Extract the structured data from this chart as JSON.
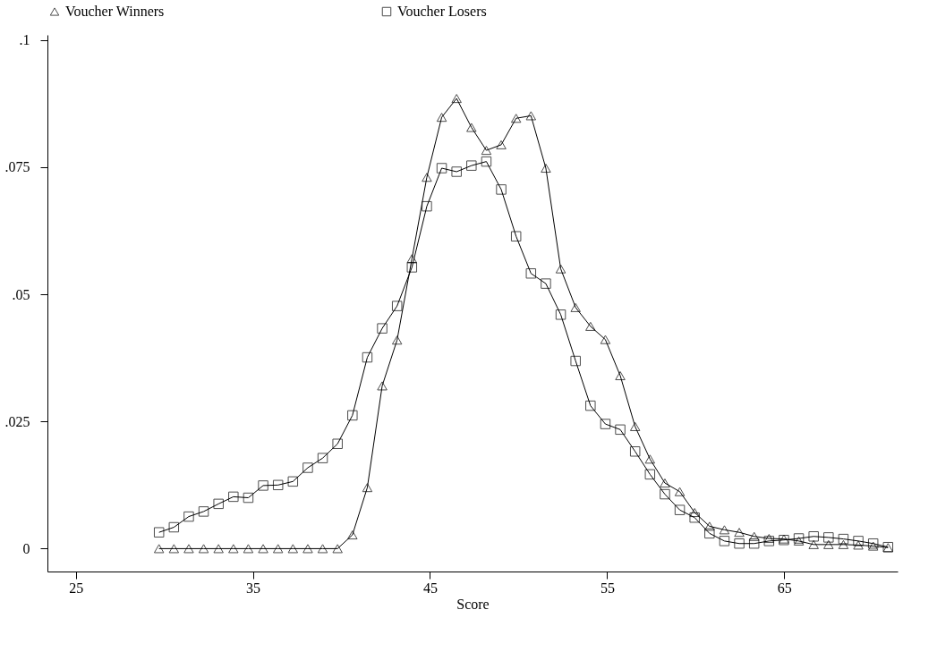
{
  "chart_data": {
    "type": "line",
    "xlabel": "Score",
    "legend": "top",
    "grid": false,
    "x": [
      29.7,
      30.54,
      31.38,
      32.22,
      33.06,
      33.9,
      34.74,
      35.58,
      36.42,
      37.26,
      38.1,
      38.94,
      39.78,
      40.62,
      41.46,
      42.3,
      43.14,
      43.98,
      44.82,
      45.66,
      46.5,
      47.34,
      48.18,
      49.02,
      49.86,
      50.7,
      51.54,
      52.38,
      53.22,
      54.06,
      54.9,
      55.74,
      56.58,
      57.42,
      58.26,
      59.1,
      59.94,
      60.78,
      61.62,
      62.46,
      63.3,
      64.14,
      64.98,
      65.82,
      66.66,
      67.5,
      68.34,
      69.18,
      70.02,
      70.86
    ],
    "xlim": [
      23.4,
      71.4
    ],
    "xticks": [
      25,
      35,
      45,
      55,
      65
    ],
    "ylim": [
      -0.0045,
      0.101
    ],
    "yticks": [
      {
        "value": 0,
        "label": "0"
      },
      {
        "value": 0.025,
        "label": ".025"
      },
      {
        "value": 0.05,
        "label": ".05"
      },
      {
        "value": 0.075,
        "label": ".075"
      },
      {
        "value": 0.1,
        "label": ".1"
      }
    ],
    "series": [
      {
        "name": "Voucher Winners",
        "color": "#000000",
        "marker": "triangle",
        "values": [
          0,
          0,
          0,
          0,
          0,
          0,
          0,
          0,
          0,
          0,
          0,
          0,
          0,
          0.0027,
          0.012,
          0.032,
          0.041,
          0.057,
          0.073,
          0.0848,
          0.0885,
          0.0828,
          0.0783,
          0.0794,
          0.0846,
          0.0851,
          0.0748,
          0.055,
          0.0474,
          0.0437,
          0.0411,
          0.034,
          0.024,
          0.0176,
          0.0129,
          0.0112,
          0.0071,
          0.0044,
          0.0037,
          0.0032,
          0.0024,
          0.002,
          0.0019,
          0.0015,
          0.0008,
          0.0008,
          0.0008,
          0.0007,
          0.0005,
          0.0002
        ]
      },
      {
        "name": "Voucher Losers",
        "color": "#000000",
        "marker": "square",
        "values": [
          0.0032,
          0.0042,
          0.0063,
          0.0073,
          0.0088,
          0.0102,
          0.01,
          0.0124,
          0.0125,
          0.0132,
          0.0159,
          0.0178,
          0.0206,
          0.0262,
          0.0376,
          0.0433,
          0.0477,
          0.0553,
          0.0673,
          0.0748,
          0.0741,
          0.0753,
          0.0761,
          0.0706,
          0.0614,
          0.0541,
          0.0521,
          0.046,
          0.0369,
          0.0281,
          0.0245,
          0.0234,
          0.0191,
          0.0146,
          0.0107,
          0.0076,
          0.0061,
          0.003,
          0.0015,
          0.001,
          0.001,
          0.0015,
          0.0017,
          0.002,
          0.0024,
          0.0022,
          0.0019,
          0.0015,
          0.001,
          0.0003
        ]
      }
    ]
  }
}
